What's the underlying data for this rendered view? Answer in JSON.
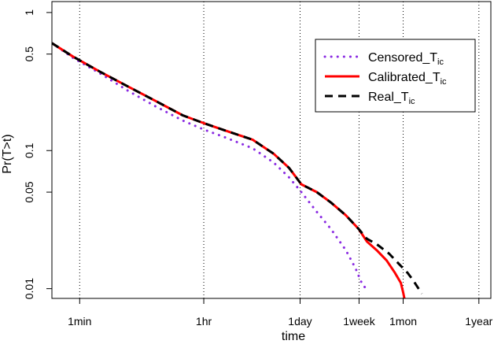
{
  "chart_data": {
    "type": "line",
    "title": "",
    "xlabel": "time",
    "ylabel": "Pr(T>t)",
    "x_scale": "log",
    "y_scale": "log",
    "x_unit": "minutes",
    "xlim": [
      0.4,
      780000
    ],
    "ylim": [
      0.0085,
      1.2
    ],
    "x_ticks": [
      {
        "label": "1min",
        "value": 1
      },
      {
        "label": "1hr",
        "value": 60
      },
      {
        "label": "1day",
        "value": 1440
      },
      {
        "label": "1week",
        "value": 10080
      },
      {
        "label": "1mon",
        "value": 43200
      },
      {
        "label": "1year",
        "value": 525600
      }
    ],
    "y_ticks": [
      {
        "label": "1",
        "value": 1
      },
      {
        "label": "0.5",
        "value": 0.5
      },
      {
        "label": "0.1",
        "value": 0.1
      },
      {
        "label": "0.05",
        "value": 0.05
      },
      {
        "label": "0.01",
        "value": 0.01
      }
    ],
    "grid": "vertical dotted lines at x ticks",
    "legend_position": "top-right",
    "series": [
      {
        "name": "Censored_T",
        "name_subscript": "ic",
        "color": "#8a2be2",
        "line_style": "dotted",
        "x": [
          0.4,
          0.8,
          2,
          5,
          12,
          30,
          60,
          120,
          300,
          600,
          1000,
          1500,
          2500,
          4000,
          6500,
          9000,
          11000,
          13000
        ],
        "y": [
          0.6,
          0.47,
          0.36,
          0.27,
          0.21,
          0.165,
          0.142,
          0.125,
          0.104,
          0.082,
          0.064,
          0.05,
          0.036,
          0.027,
          0.019,
          0.014,
          0.011,
          0.0098
        ]
      },
      {
        "name": "Calibrated_T",
        "name_subscript": "ic",
        "color": "#ff0000",
        "line_style": "solid",
        "x": [
          0.4,
          0.8,
          2,
          5,
          12,
          30,
          60,
          120,
          300,
          600,
          1000,
          1500,
          2500,
          4000,
          6500,
          10000,
          13000,
          18000,
          25000,
          33000,
          40000,
          43000,
          45000
        ],
        "y": [
          0.6,
          0.48,
          0.37,
          0.29,
          0.23,
          0.18,
          0.158,
          0.14,
          0.12,
          0.095,
          0.075,
          0.057,
          0.05,
          0.042,
          0.034,
          0.027,
          0.022,
          0.019,
          0.016,
          0.013,
          0.011,
          0.0095,
          0.0085
        ]
      },
      {
        "name": "Real_T",
        "name_subscript": "ic",
        "color": "#000000",
        "line_style": "dashed",
        "x": [
          0.4,
          0.8,
          2,
          5,
          12,
          30,
          60,
          120,
          300,
          600,
          1000,
          1500,
          2500,
          4000,
          6500,
          10000,
          13000,
          18000,
          27000,
          38000,
          50000,
          60000,
          70000,
          80000
        ],
        "y": [
          0.6,
          0.48,
          0.37,
          0.29,
          0.23,
          0.18,
          0.158,
          0.14,
          0.12,
          0.095,
          0.075,
          0.057,
          0.05,
          0.042,
          0.034,
          0.027,
          0.023,
          0.021,
          0.018,
          0.015,
          0.013,
          0.0115,
          0.0102,
          0.0092
        ]
      }
    ]
  }
}
